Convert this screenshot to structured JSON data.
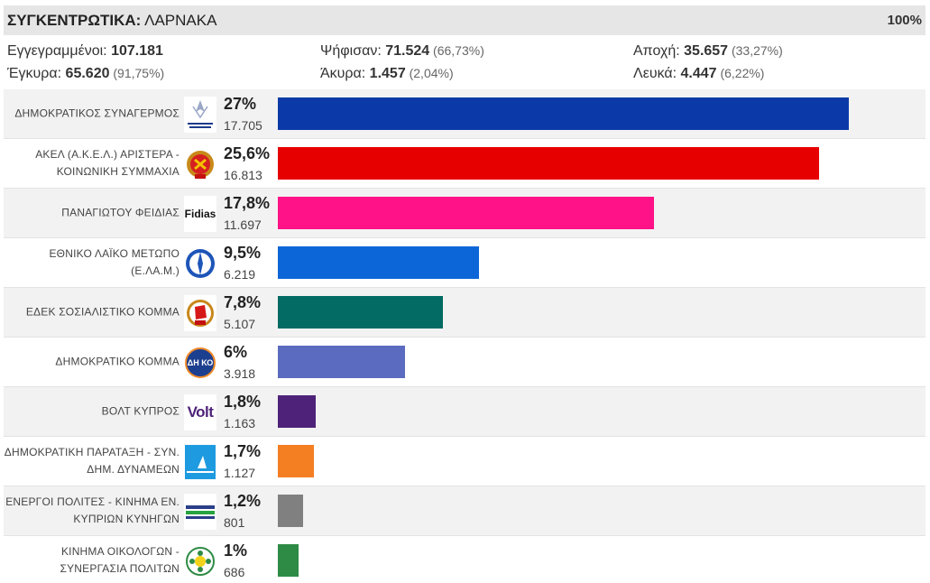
{
  "header": {
    "title_bold": "ΣΥΓΚΕΝΤΡΩΤΙΚΑ:",
    "title_rest": " ΛΑΡΝΑΚΑ",
    "percent": "100%"
  },
  "stats": {
    "registered_label": "Εγγεγραμμένοι: ",
    "registered_value": "107.181",
    "voted_label": "Ψήφισαν: ",
    "voted_value": "71.524",
    "voted_pct": " (66,73%)",
    "abstain_label": "Αποχή: ",
    "abstain_value": "35.657",
    "abstain_pct": " (33,27%)",
    "valid_label": "Έγκυρα: ",
    "valid_value": "65.620",
    "valid_pct": " (91,75%)",
    "invalid_label": "Άκυρα: ",
    "invalid_value": "1.457",
    "invalid_pct": " (2,04%)",
    "blank_label": "Λευκά: ",
    "blank_value": "4.447",
    "blank_pct": " (6,22%)"
  },
  "parties": [
    {
      "name": "ΔΗΜΟΚΡΑΤΙΚΟΣ ΣΥΝΑΓΕΡΜΟΣ",
      "percent": "27%",
      "votes": "17.705",
      "share": 27,
      "color": "#0b3aa8",
      "logo": "disy-logo"
    },
    {
      "name": "ΑΚΕΛ (Α.Κ.Ε.Λ.) ΑΡΙΣΤΕΡΑ - ΚΟΙΝΩΝΙΚΗ ΣΥΜΜΑΧΙΑ",
      "percent": "25,6%",
      "votes": "16.813",
      "share": 25.6,
      "color": "#e60000",
      "logo": "akel-logo"
    },
    {
      "name": "ΠΑΝΑΓΙΩΤΟΥ ΦΕΙΔΙΑΣ",
      "percent": "17,8%",
      "votes": "11.697",
      "share": 17.8,
      "color": "#ff1188",
      "logo": "fidias-logo",
      "logo_text": "Fidias"
    },
    {
      "name": "ΕΘΝΙΚΟ ΛΑΪΚΟ ΜΕΤΩΠΟ (Ε.ΛΑ.Μ.)",
      "percent": "9,5%",
      "votes": "6.219",
      "share": 9.5,
      "color": "#0d66d8",
      "logo": "elam-logo"
    },
    {
      "name": "ΕΔΕΚ ΣΟΣΙΑΛΙΣΤΙΚΟ ΚΟΜΜΑ",
      "percent": "7,8%",
      "votes": "5.107",
      "share": 7.8,
      "color": "#036a64",
      "logo": "edek-logo"
    },
    {
      "name": "ΔΗΜΟΚΡΑΤΙΚΟ ΚΟΜΜΑ",
      "percent": "6%",
      "votes": "3.918",
      "share": 6,
      "color": "#5b6bbf",
      "logo": "diko-logo",
      "logo_text": "ΔΗ ΚΟ"
    },
    {
      "name": "ΒΟΛΤ ΚΥΠΡΟΣ",
      "percent": "1,8%",
      "votes": "1.163",
      "share": 1.8,
      "color": "#4e2279",
      "logo": "volt-logo",
      "logo_text": "Volt"
    },
    {
      "name": "ΔΗΜΟΚΡΑΤΙΚΗ ΠΑΡΑΤΑΞΗ - ΣΥΝ. ΔΗΜ. ΔΥΝΑΜΕΩΝ",
      "percent": "1,7%",
      "votes": "1.127",
      "share": 1.7,
      "color": "#f47e22",
      "logo": "dipa-logo"
    },
    {
      "name": "ΕΝΕΡΓΟΙ ΠΟΛΙΤΕΣ - ΚΙΝΗΜΑ ΕΝ. ΚΥΠΡΙΩΝ ΚΥΝΗΓΩΝ",
      "percent": "1,2%",
      "votes": "801",
      "share": 1.2,
      "color": "#808080",
      "logo": "energoi-logo"
    },
    {
      "name": "ΚΙΝΗΜΑ ΟΙΚΟΛΟΓΩΝ - ΣΥΝΕΡΓΑΣΙΑ ΠΟΛΙΤΩΝ",
      "percent": "1%",
      "votes": "686",
      "share": 1,
      "color": "#2e8b45",
      "logo": "ecologists-logo"
    }
  ]
}
